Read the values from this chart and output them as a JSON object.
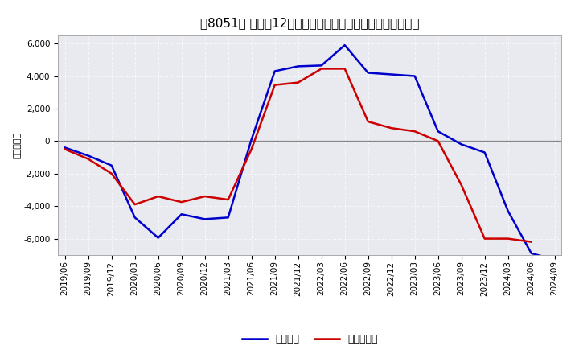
{
  "title": "［8051］ 利益の12か月移動合計の対前年同期増減額の推移",
  "ylabel": "（百万円）",
  "background_color": "#ffffff",
  "plot_background_color": "#e8eaf0",
  "grid_color": "#ffffff",
  "ylim": [
    -7000,
    6500
  ],
  "yticks": [
    -6000,
    -4000,
    -2000,
    0,
    2000,
    4000,
    6000
  ],
  "x_labels": [
    "2019/06",
    "2019/09",
    "2019/12",
    "2020/03",
    "2020/06",
    "2020/09",
    "2020/12",
    "2021/03",
    "2021/06",
    "2021/09",
    "2021/12",
    "2022/03",
    "2022/06",
    "2022/09",
    "2022/12",
    "2023/03",
    "2023/06",
    "2023/09",
    "2023/12",
    "2024/03",
    "2024/06",
    "2024/09"
  ],
  "keijo_rieki": [
    -400,
    -900,
    -1500,
    -4700,
    -5950,
    -4500,
    -4800,
    -4700,
    100,
    4300,
    4600,
    4650,
    5900,
    4200,
    4100,
    4000,
    600,
    -200,
    -700,
    -4300,
    -6900,
    -7300
  ],
  "junrieki": [
    -500,
    -1100,
    -2000,
    -3900,
    -3400,
    -3750,
    -3400,
    -3600,
    -500,
    3450,
    3600,
    4450,
    4450,
    1200,
    800,
    600,
    0,
    -2700,
    -6000,
    -6000,
    -6200,
    null
  ],
  "line_color_keijo": "#0000cc",
  "line_color_jun": "#cc0000",
  "line_width": 1.8,
  "legend_keijo": "経常利益",
  "legend_jun": "当期純利益",
  "title_fontsize": 11,
  "tick_fontsize": 7.5,
  "ylabel_fontsize": 8
}
